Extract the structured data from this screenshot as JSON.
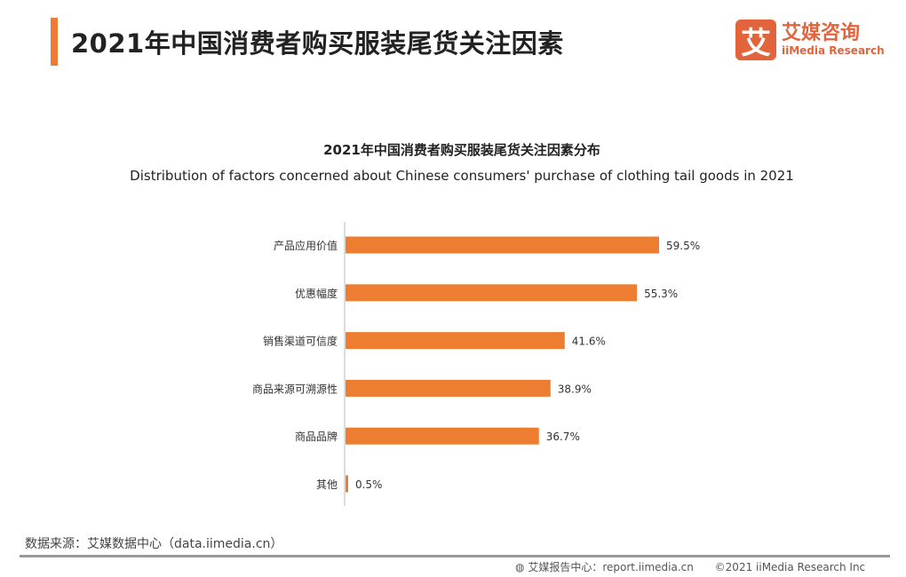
{
  "header": {
    "title": "2021年中国消费者购买服装尾货关注因素"
  },
  "logo": {
    "icon_char": "艾",
    "cn": "艾媒咨询",
    "en": "iiMedia Research"
  },
  "chart_data": {
    "type": "bar",
    "orientation": "horizontal",
    "title": "2021年中国消费者购买服装尾货关注因素分布",
    "subtitle": "Distribution of factors concerned about Chinese consumers' purchase of clothing tail goods in 2021",
    "categories": [
      "产品应用价值",
      "优惠幅度",
      "销售渠道可信度",
      "商品来源可溯源性",
      "商品品牌",
      "其他"
    ],
    "values": [
      59.5,
      55.3,
      41.6,
      38.9,
      36.7,
      0.5
    ],
    "value_labels": [
      "59.5%",
      "55.3%",
      "41.6%",
      "38.9%",
      "36.7%",
      "0.5%"
    ],
    "unit": "%",
    "bar_color": "#ed7d31",
    "grid": false
  },
  "footer": {
    "source": "数据来源：艾媒数据中心（data.iimedia.cn）",
    "report_center": "艾媒报告中心：report.iimedia.cn",
    "copyright": "©2021  iiMedia Research  Inc"
  }
}
